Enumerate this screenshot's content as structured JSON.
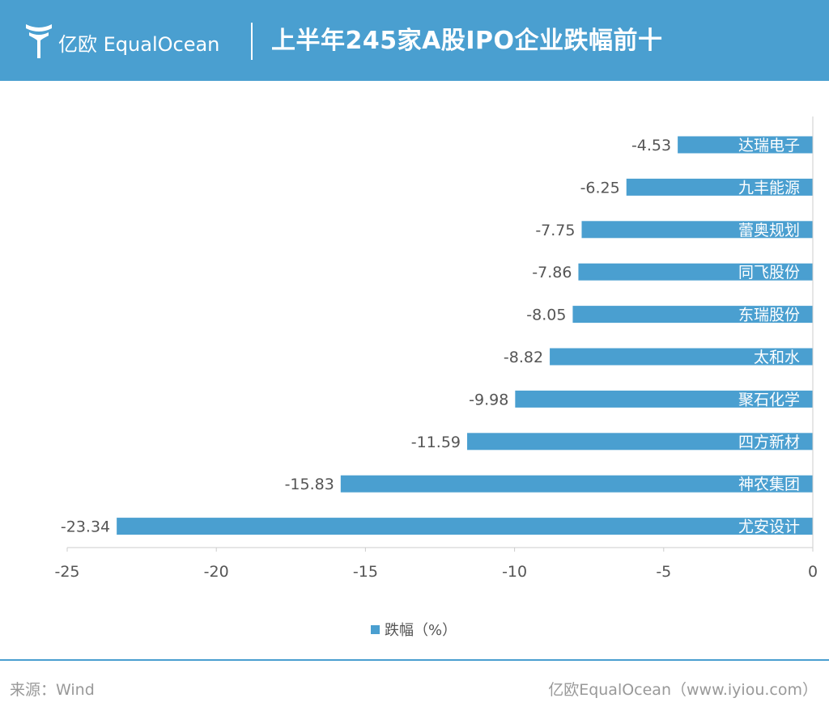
{
  "header": {
    "brand": "亿欧 EqualOcean",
    "title": "上半年245家A股IPO企业跌幅前十"
  },
  "footer": {
    "source": "来源：Wind",
    "credit": "亿欧EqualOcean（www.iyiou.com）"
  },
  "colors": {
    "accent": "#4a9fd0",
    "bar": "#4a9fd0"
  },
  "chart_data": {
    "type": "bar",
    "orientation": "horizontal",
    "categories": [
      "达瑞电子",
      "九丰能源",
      "蕾奥规划",
      "同飞股份",
      "东瑞股份",
      "太和水",
      "聚石化学",
      "四方新材",
      "神农集团",
      "尤安设计"
    ],
    "series": [
      {
        "name": "跌幅（%）",
        "values": [
          -4.53,
          -6.25,
          -7.75,
          -7.86,
          -8.05,
          -8.82,
          -9.98,
          -11.59,
          -15.83,
          -23.34
        ],
        "labels": [
          "-4.53",
          "-6.25",
          "-7.75",
          "-7.86",
          "-8.05",
          "-8.82",
          "-9.98",
          "-11.59",
          "-15.83",
          "-23.34"
        ]
      }
    ],
    "xlim": [
      -25,
      0
    ],
    "xticks": [
      -25,
      -20,
      -15,
      -10,
      -5,
      0
    ],
    "xtick_labels": [
      "-25",
      "-20",
      "-15",
      "-10",
      "-5",
      "0"
    ],
    "title": "上半年245家A股IPO企业跌幅前十",
    "xlabel": "",
    "ylabel": "",
    "grid": false,
    "legend": "bottom",
    "legend_label": "跌幅（%）"
  }
}
